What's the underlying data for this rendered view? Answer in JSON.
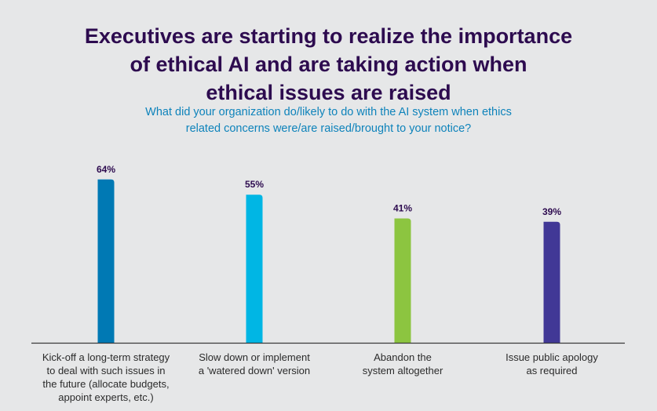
{
  "chart_data": {
    "type": "bar",
    "title": "Executives are starting to realize the importance\nof ethical AI and are taking action when\nethical issues are raised",
    "subtitle": "What did your organization do/likely to do with the AI system when ethics\nrelated concerns were/are raised/brought to your notice?",
    "categories": [
      "Kick-off a long-term strategy\nto deal with such issues in\nthe future (allocate budgets,\nappoint experts, etc.)",
      "Slow down or implement\na 'watered down' version",
      "Abandon the\nsystem altogether",
      "Issue public apology\nas required"
    ],
    "values": [
      64,
      55,
      41,
      39
    ],
    "data_labels": [
      "64%",
      "55%",
      "41%",
      "39%"
    ],
    "colors": [
      "#0079b4",
      "#00b6e4",
      "#8cc540",
      "#413896"
    ],
    "xlabel": "",
    "ylabel": "",
    "grid": false,
    "legend": "none"
  },
  "colors": {
    "title": "#2d0b4f",
    "subtitle": "#0e83bb",
    "background": "#e6e7e8"
  }
}
